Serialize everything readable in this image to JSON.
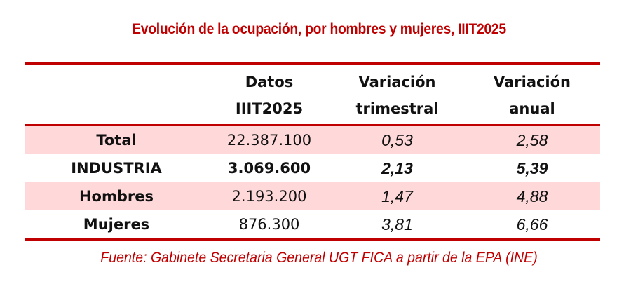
{
  "title": "Evolución de la ocupación, por hombres y mujeres, IIIT2025",
  "table": {
    "headers": [
      {
        "line1": "",
        "line2": ""
      },
      {
        "line1": "Datos",
        "line2": "IIIT2025"
      },
      {
        "line1": "Variación",
        "line2": "trimestral"
      },
      {
        "line1": "Variación",
        "line2": "anual"
      }
    ],
    "rows": [
      {
        "label": "Total",
        "datos": "22.387.100",
        "var_trimestral": "0,53",
        "var_anual": "2,58",
        "bold": false,
        "shaded": true
      },
      {
        "label": "INDUSTRIA",
        "datos": "3.069.600",
        "var_trimestral": "2,13",
        "var_anual": "5,39",
        "bold": true,
        "shaded": false
      },
      {
        "label": "Hombres",
        "datos": "2.193.200",
        "var_trimestral": "1,47",
        "var_anual": "4,88",
        "bold": false,
        "shaded": true
      },
      {
        "label": "Mujeres",
        "datos": "876.300",
        "var_trimestral": "3,81",
        "var_anual": "6,66",
        "bold": false,
        "shaded": false
      }
    ]
  },
  "source": "Fuente: Gabinete Secretaria General UGT FICA a partir de la EPA (INE)",
  "colors": {
    "accent": "#c00000",
    "row_shade": "#ffd9da",
    "text": "#111111"
  }
}
